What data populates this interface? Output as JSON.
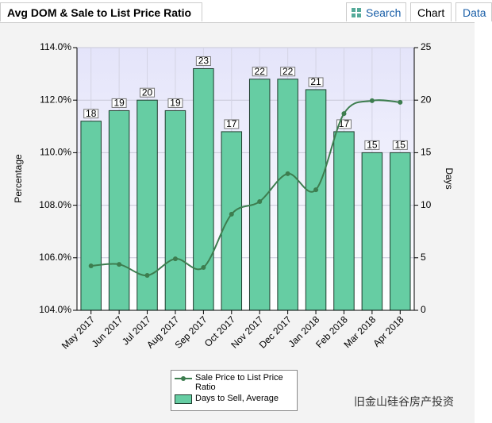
{
  "panel_title": "Avg DOM & Sale to List Price Ratio",
  "tabs": [
    "Search",
    "Chart",
    "Data"
  ],
  "watermark": "旧金山硅谷房产投资",
  "chart_data": {
    "type": "bar-line",
    "categories": [
      "May 2017",
      "Jun 2017",
      "Jul 2017",
      "Aug 2017",
      "Sep 2017",
      "Oct 2017",
      "Nov 2017",
      "Dec 2017",
      "Jan 2018",
      "Feb 2018",
      "Mar 2018",
      "Apr 2018"
    ],
    "y_label": "Percentage",
    "y2_label": "Days",
    "ylim": [
      104,
      114
    ],
    "yticks": [
      {
        "value": 104,
        "label": "104.0%"
      },
      {
        "value": 106,
        "label": "106.0%"
      },
      {
        "value": 108,
        "label": "108.0%"
      },
      {
        "value": 110,
        "label": "110.0%"
      },
      {
        "value": 112,
        "label": "112.0%"
      },
      {
        "value": 114,
        "label": "114.0%"
      }
    ],
    "y2lim": [
      0,
      25
    ],
    "y2ticks": [
      0,
      5,
      10,
      15,
      20,
      25
    ],
    "grid": true,
    "series": [
      {
        "name": "Sale Price to List Price Ratio",
        "type": "line",
        "color": "#3d7d4f",
        "values": [
          105.69,
          105.75,
          105.33,
          105.96,
          105.63,
          107.66,
          108.14,
          109.2,
          108.59,
          111.49,
          111.98,
          111.92
        ]
      },
      {
        "name": "Days to Sell, Average",
        "type": "bar",
        "axis": "y2",
        "color": "#66cda3",
        "values": [
          18,
          19,
          20,
          19,
          23,
          17,
          22,
          22,
          21,
          17,
          15,
          15
        ]
      }
    ]
  }
}
